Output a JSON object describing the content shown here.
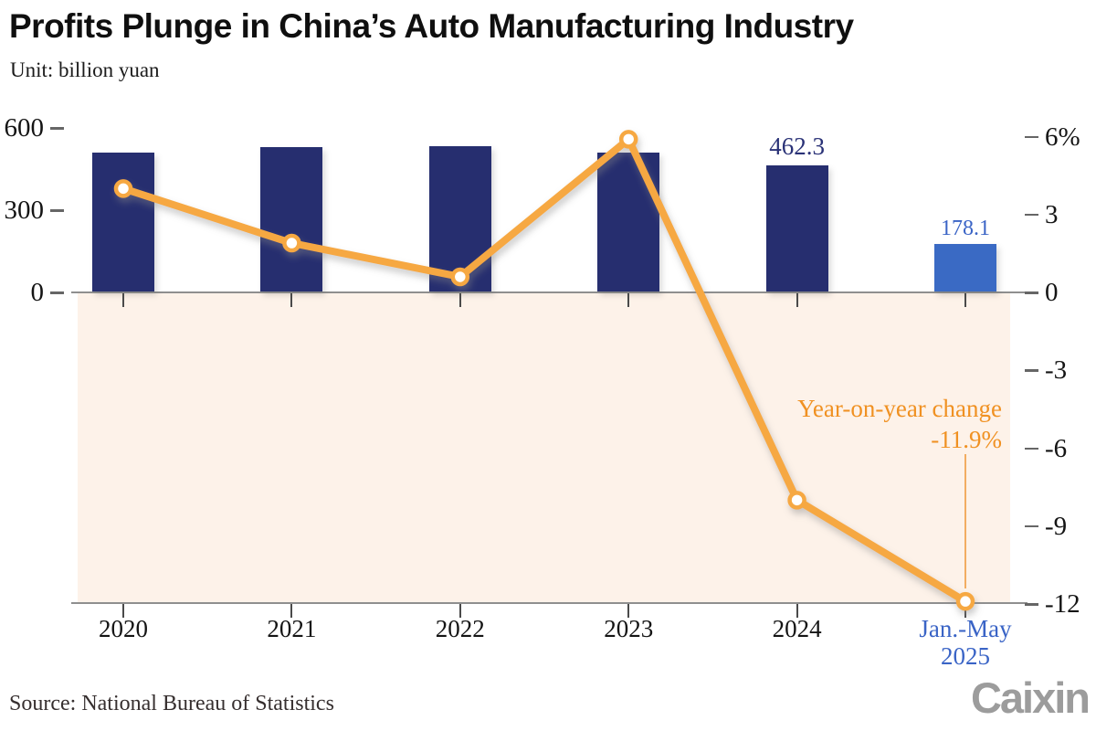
{
  "header": {
    "title": "Profits Plunge in China’s Auto Manufacturing Industry",
    "subtitle": "Unit: billion yuan"
  },
  "annotation": {
    "text": "Year-on-year change",
    "value": "-11.9%"
  },
  "footer": {
    "source": "Source: National Bureau of Statistics",
    "logo": "Caixin"
  },
  "colors": {
    "bar_navy": "#262e6f",
    "bar_highlight_blue": "#3a6ac4",
    "line_orange": "#f6a843",
    "marker_fill": "#ffffff",
    "annotation_orange": "#f09122",
    "below_zero_background": "#fdf2e9",
    "axis_gray": "#8f8f8f",
    "value_label_navy": "#2a3277",
    "value_label_blue": "#3a64c6",
    "x_label_black": "#141414",
    "logo_gray": "#9c9c9c"
  },
  "chart_data": {
    "type": "bar+line combo",
    "title": "Profits Plunge in China’s Auto Manufacturing Industry",
    "unit": "billion yuan",
    "grid": "off",
    "legend": "none (line identified by in-chart annotation)",
    "categories": [
      "2020",
      "2021",
      "2022",
      "2023",
      "2024",
      "Jan.-May 2025"
    ],
    "category_label_lines": [
      [
        "2020"
      ],
      [
        "2021"
      ],
      [
        "2022"
      ],
      [
        "2023"
      ],
      [
        "2024"
      ],
      [
        "Jan.-May",
        "2025"
      ]
    ],
    "highlight_index": 5,
    "series": [
      {
        "name": "Profits (billion yuan)",
        "type": "bar",
        "axis": "left",
        "values": [
          510,
          530,
          533,
          510,
          462.3,
          178.1
        ],
        "value_labels": [
          null,
          null,
          null,
          null,
          "462.3",
          "178.1"
        ]
      },
      {
        "name": "Year-on-year change (%)",
        "type": "line",
        "axis": "right",
        "values": [
          4.0,
          1.9,
          0.6,
          5.9,
          -8.0,
          -11.9
        ],
        "labeled_point": {
          "category": "Jan.-May 2025",
          "label": "-11.9%"
        }
      }
    ],
    "left_axis": {
      "range": [
        0,
        600
      ],
      "ticks": [
        {
          "value": 600,
          "label": "600"
        },
        {
          "value": 300,
          "label": "300"
        },
        {
          "value": 0,
          "label": "0"
        }
      ]
    },
    "right_axis": {
      "range": [
        -12,
        6
      ],
      "ticks": [
        {
          "value": 6,
          "label": "6%"
        },
        {
          "value": 3,
          "label": "3"
        },
        {
          "value": 0,
          "label": "0"
        },
        {
          "value": -3,
          "label": "-3"
        },
        {
          "value": -6,
          "label": "-6"
        },
        {
          "value": -9,
          "label": "-9"
        },
        {
          "value": -12,
          "label": "-12"
        }
      ]
    },
    "annotation": {
      "text": "Year-on-year change",
      "value": "-11.9%"
    }
  }
}
